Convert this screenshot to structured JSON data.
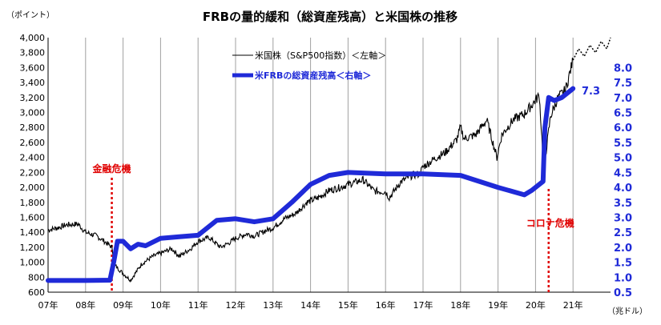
{
  "chart_data": {
    "type": "line",
    "title": "FRBの量的緩和（総資産残高）と米国株の推移",
    "left_unit": "（ポイント）",
    "right_unit": "（兆ドル）",
    "x_tick_labels": [
      "07年",
      "08年",
      "09年",
      "10年",
      "11年",
      "12年",
      "13年",
      "14年",
      "15年",
      "16年",
      "17年",
      "18年",
      "19年",
      "20年",
      "21年"
    ],
    "x_range": [
      2007.0,
      2022.0
    ],
    "y_left_range": [
      600,
      4000
    ],
    "y_left_ticks": [
      600,
      800,
      1000,
      1200,
      1400,
      1600,
      1800,
      2000,
      2200,
      2400,
      2600,
      2800,
      3000,
      3200,
      3400,
      3600,
      3800,
      4000
    ],
    "y_right_range": [
      0.5,
      9.0
    ],
    "y_right_ticks": [
      0.5,
      1.0,
      1.5,
      2.0,
      2.5,
      3.0,
      3.5,
      4.0,
      4.5,
      5.0,
      5.5,
      6.0,
      6.5,
      7.0,
      7.5,
      8.0
    ],
    "grid": "vertical",
    "colors": {
      "sp500": "#000000",
      "frb": "#1f2ad8",
      "annotation": "#e00000"
    },
    "series": [
      {
        "name": "米国株（S&P500指数）＜左軸＞",
        "axis": "left",
        "x": [
          2007.0,
          2007.25,
          2007.5,
          2007.8,
          2008.0,
          2008.3,
          2008.5,
          2008.7,
          2008.8,
          2009.0,
          2009.2,
          2009.5,
          2009.8,
          2010.0,
          2010.3,
          2010.5,
          2010.8,
          2011.0,
          2011.3,
          2011.6,
          2011.8,
          2012.0,
          2012.3,
          2012.5,
          2012.8,
          2013.0,
          2013.3,
          2013.6,
          2013.9,
          2014.2,
          2014.5,
          2014.8,
          2015.0,
          2015.4,
          2015.7,
          2016.0,
          2016.1,
          2016.4,
          2016.7,
          2016.9,
          2017.0,
          2017.3,
          2017.6,
          2017.9,
          2018.0,
          2018.1,
          2018.4,
          2018.7,
          2018.97,
          2019.1,
          2019.4,
          2019.7,
          2019.9,
          2020.1,
          2020.22,
          2020.4,
          2020.6,
          2020.8,
          2021.0
        ],
        "values": [
          1430,
          1460,
          1500,
          1510,
          1400,
          1350,
          1280,
          1200,
          950,
          850,
          760,
          980,
          1080,
          1120,
          1180,
          1080,
          1180,
          1280,
          1330,
          1200,
          1250,
          1320,
          1380,
          1350,
          1420,
          1460,
          1580,
          1650,
          1800,
          1860,
          1960,
          2000,
          2040,
          2100,
          1950,
          1940,
          1860,
          2070,
          2160,
          2180,
          2270,
          2380,
          2470,
          2640,
          2800,
          2650,
          2700,
          2900,
          2400,
          2700,
          2900,
          2980,
          3100,
          3230,
          2240,
          2950,
          3200,
          3300,
          3700
        ],
        "forecast_x": [
          2021.0,
          2021.15,
          2021.3,
          2021.45,
          2021.6,
          2021.75,
          2021.9,
          2022.0
        ],
        "forecast_values": [
          3700,
          3850,
          3750,
          3900,
          3800,
          3950,
          3850,
          4000
        ]
      },
      {
        "name": "米FRBの総資産残高＜右軸＞",
        "axis": "right",
        "x": [
          2007.0,
          2008.0,
          2008.65,
          2008.75,
          2008.85,
          2009.0,
          2009.2,
          2009.4,
          2009.6,
          2010.0,
          2010.5,
          2011.0,
          2011.5,
          2012.0,
          2012.5,
          2013.0,
          2013.5,
          2014.0,
          2014.5,
          2015.0,
          2016.0,
          2017.0,
          2018.0,
          2019.0,
          2019.7,
          2019.9,
          2020.2,
          2020.25,
          2020.35,
          2020.5,
          2020.7,
          2021.0
        ],
        "values": [
          0.89,
          0.89,
          0.9,
          1.5,
          2.2,
          2.2,
          1.95,
          2.1,
          2.05,
          2.3,
          2.35,
          2.4,
          2.9,
          2.95,
          2.85,
          2.95,
          3.5,
          4.1,
          4.4,
          4.5,
          4.45,
          4.45,
          4.4,
          4.0,
          3.75,
          3.9,
          4.2,
          6.0,
          7.0,
          6.9,
          7.0,
          7.3
        ]
      }
    ],
    "legend": [
      "米国株（S&P500指数）＜左軸＞",
      "米FRBの総資産残高＜右軸＞"
    ],
    "annotations": [
      {
        "text": "金融危機",
        "x": 2008.7
      },
      {
        "text": "コロナ危機",
        "x": 2020.35
      }
    ],
    "end_label": "7.3"
  }
}
